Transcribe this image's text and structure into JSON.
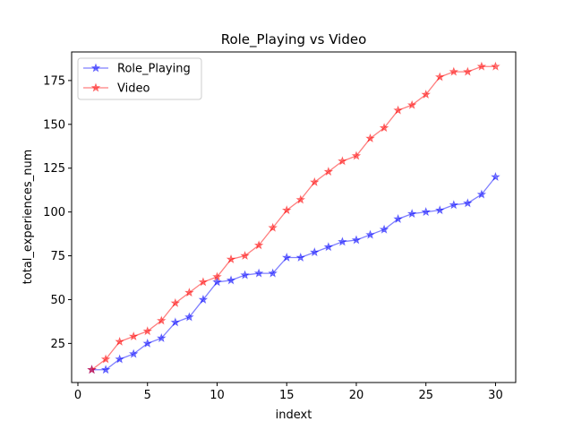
{
  "chart_data": {
    "type": "line",
    "title": "Role_Playing vs Video",
    "xlabel": "indext",
    "ylabel": "total_experiences_num",
    "xlim": [
      -0.45,
      31.45
    ],
    "ylim": [
      2.7,
      191.3
    ],
    "xticks": [
      0,
      5,
      10,
      15,
      20,
      25,
      30
    ],
    "yticks": [
      25,
      50,
      75,
      100,
      125,
      150,
      175
    ],
    "grid": false,
    "legend_position": "top-left",
    "x": [
      1,
      2,
      3,
      4,
      5,
      6,
      7,
      8,
      9,
      10,
      11,
      12,
      13,
      14,
      15,
      16,
      17,
      18,
      19,
      20,
      21,
      22,
      23,
      24,
      25,
      26,
      27,
      28,
      29,
      30
    ],
    "series": [
      {
        "name": "Role_Playing",
        "color": "#0000ff",
        "marker": "star",
        "values": [
          10,
          10,
          16,
          19,
          25,
          28,
          37,
          40,
          50,
          60,
          61,
          64,
          65,
          65,
          74,
          74,
          77,
          80,
          83,
          84,
          87,
          90,
          96,
          99,
          100,
          101,
          104,
          105,
          110,
          120
        ]
      },
      {
        "name": "Video",
        "color": "#ff0000",
        "marker": "star",
        "values": [
          10,
          16,
          26,
          29,
          32,
          38,
          48,
          54,
          60,
          63,
          73,
          75,
          81,
          91,
          101,
          107,
          117,
          123,
          129,
          132,
          142,
          148,
          158,
          161,
          167,
          177,
          180,
          180,
          183,
          183
        ]
      }
    ]
  }
}
